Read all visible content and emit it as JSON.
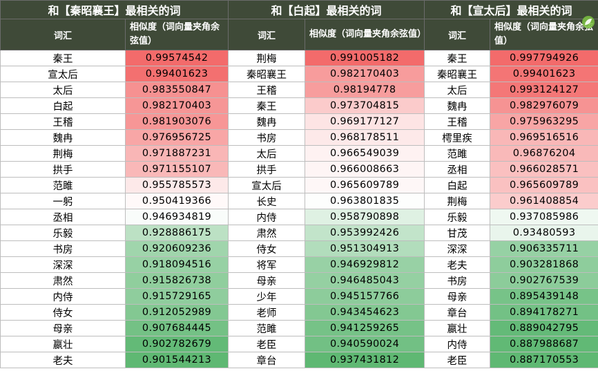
{
  "colors": {
    "header_bg": "#3f4a38",
    "header_text": "#ffffff",
    "high_similarity": "#f36b6b",
    "mid_similarity": "#ffffff",
    "low_similarity": "#5fb873"
  },
  "icon": "green-leaf-logo-icon",
  "groups": [
    {
      "title": "和【秦昭襄王】最相关的词",
      "word_header": "词汇",
      "sim_header": "相似度（词向量夹角余弦值）",
      "rows": [
        {
          "word": "秦王",
          "sim": "0.99574542"
        },
        {
          "word": "宣太后",
          "sim": "0.99401623"
        },
        {
          "word": "太后",
          "sim": "0.983550847"
        },
        {
          "word": "白起",
          "sim": "0.982170403"
        },
        {
          "word": "王稽",
          "sim": "0.981903076"
        },
        {
          "word": "魏冉",
          "sim": "0.976956725"
        },
        {
          "word": "荆梅",
          "sim": "0.971887231"
        },
        {
          "word": "拱手",
          "sim": "0.971155107"
        },
        {
          "word": "范雎",
          "sim": "0.955785573"
        },
        {
          "word": "一躬",
          "sim": "0.950419366"
        },
        {
          "word": "丞相",
          "sim": "0.946934819"
        },
        {
          "word": "乐毅",
          "sim": "0.928886175"
        },
        {
          "word": "书房",
          "sim": "0.920609236"
        },
        {
          "word": "深深",
          "sim": "0.918094516"
        },
        {
          "word": "肃然",
          "sim": "0.915826738"
        },
        {
          "word": "内侍",
          "sim": "0.915729165"
        },
        {
          "word": "侍女",
          "sim": "0.912052989"
        },
        {
          "word": "母亲",
          "sim": "0.907684445"
        },
        {
          "word": "嬴壮",
          "sim": "0.902782679"
        },
        {
          "word": "老夫",
          "sim": "0.901544213"
        }
      ]
    },
    {
      "title": "和【白起】最相关的词",
      "word_header": "词汇",
      "sim_header": "相似度（词向量夹角余弦值）",
      "rows": [
        {
          "word": "荆梅",
          "sim": "0.991005182"
        },
        {
          "word": "秦昭襄王",
          "sim": "0.982170403"
        },
        {
          "word": "王稽",
          "sim": "0.98194778"
        },
        {
          "word": "秦王",
          "sim": "0.973704815"
        },
        {
          "word": "魏冉",
          "sim": "0.969177127"
        },
        {
          "word": "书房",
          "sim": "0.968178511"
        },
        {
          "word": "太后",
          "sim": "0.966549039"
        },
        {
          "word": "拱手",
          "sim": "0.966008663"
        },
        {
          "word": "宣太后",
          "sim": "0.965609789"
        },
        {
          "word": "长史",
          "sim": "0.963801835"
        },
        {
          "word": "内侍",
          "sim": "0.958790898"
        },
        {
          "word": "肃然",
          "sim": "0.953992426"
        },
        {
          "word": "侍女",
          "sim": "0.951304913"
        },
        {
          "word": "将军",
          "sim": "0.946929812"
        },
        {
          "word": "母亲",
          "sim": "0.946485043"
        },
        {
          "word": "少年",
          "sim": "0.945157766"
        },
        {
          "word": "老师",
          "sim": "0.943454623"
        },
        {
          "word": "范雎",
          "sim": "0.941259265"
        },
        {
          "word": "老臣",
          "sim": "0.940590024"
        },
        {
          "word": "章台",
          "sim": "0.937431812"
        }
      ]
    },
    {
      "title": "和【宣太后】最相关的词",
      "word_header": "词汇",
      "sim_header": "相似度（词向量夹角余弦值）",
      "rows": [
        {
          "word": "秦王",
          "sim": "0.997794926"
        },
        {
          "word": "秦昭襄王",
          "sim": "0.99401623"
        },
        {
          "word": "太后",
          "sim": "0.993124127"
        },
        {
          "word": "魏冉",
          "sim": "0.982976079"
        },
        {
          "word": "王稽",
          "sim": "0.975963295"
        },
        {
          "word": "樗里疾",
          "sim": "0.969516516"
        },
        {
          "word": "范雎",
          "sim": "0.96876204"
        },
        {
          "word": "丞相",
          "sim": "0.966028571"
        },
        {
          "word": "白起",
          "sim": "0.965609789"
        },
        {
          "word": "荆梅",
          "sim": "0.961408854"
        },
        {
          "word": "乐毅",
          "sim": "0.937085986"
        },
        {
          "word": "甘茂",
          "sim": "0.93480593"
        },
        {
          "word": "深深",
          "sim": "0.906335711"
        },
        {
          "word": "老夫",
          "sim": "0.903281868"
        },
        {
          "word": "书房",
          "sim": "0.902767539"
        },
        {
          "word": "母亲",
          "sim": "0.895439148"
        },
        {
          "word": "章台",
          "sim": "0.894178271"
        },
        {
          "word": "嬴壮",
          "sim": "0.889042795"
        },
        {
          "word": "内侍",
          "sim": "0.887988687"
        },
        {
          "word": "老臣",
          "sim": "0.887170553"
        }
      ]
    }
  ]
}
